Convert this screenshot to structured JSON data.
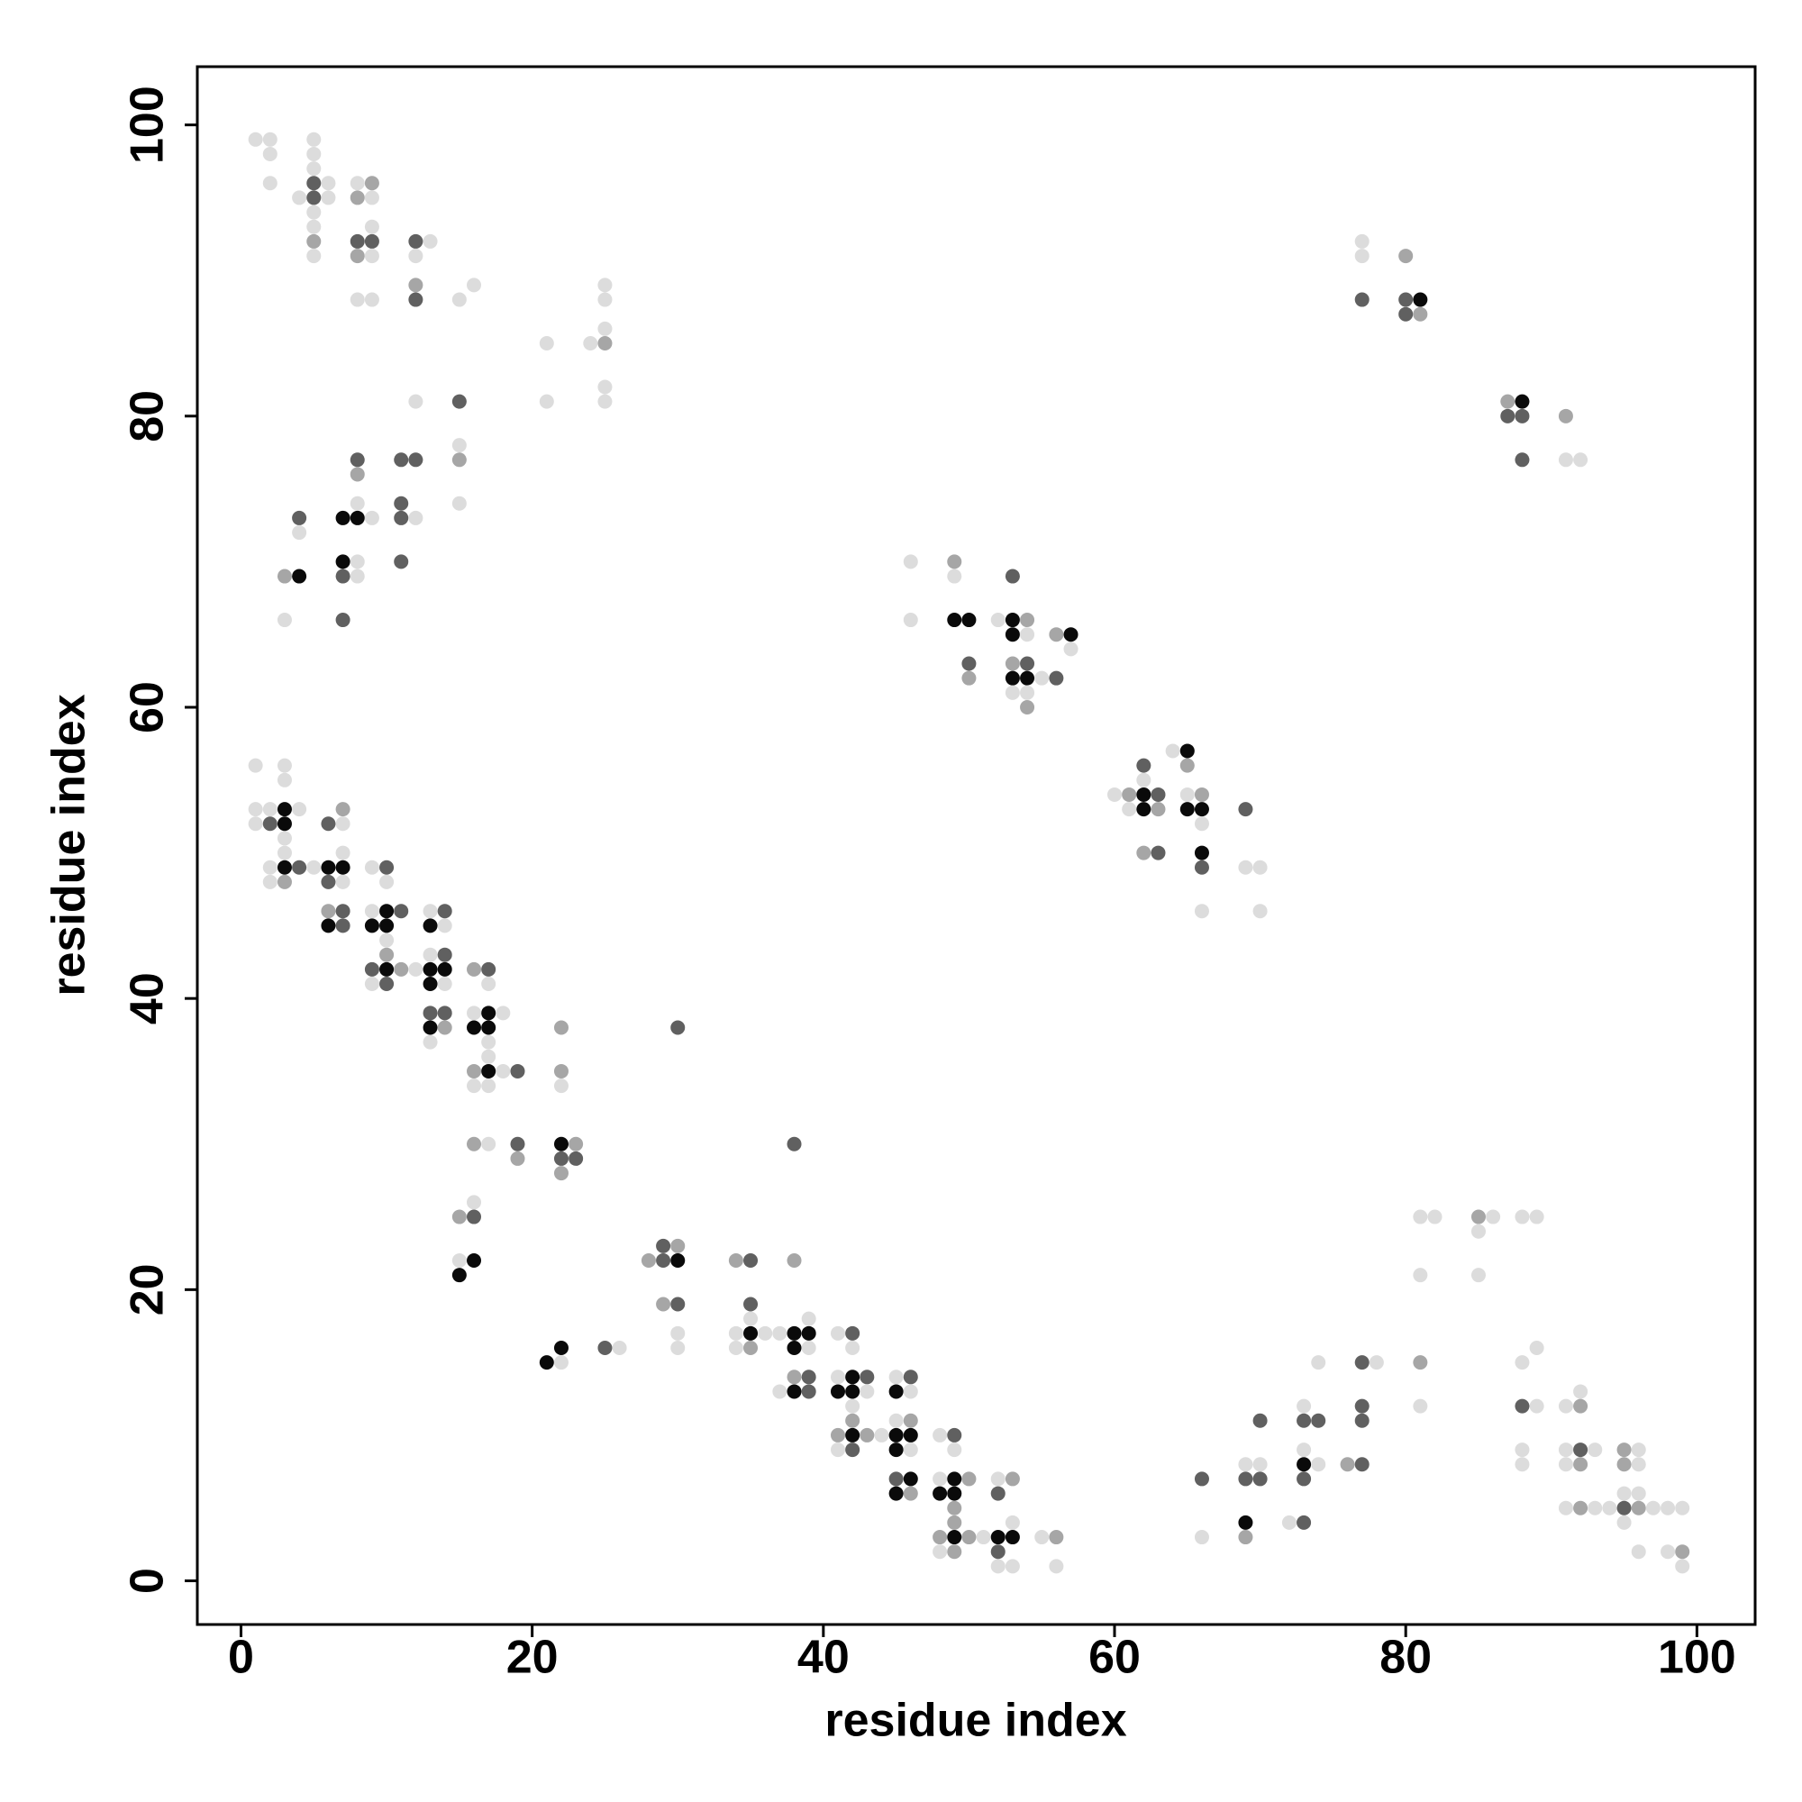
{
  "chart_data": {
    "type": "scatter",
    "xlabel": "residue index",
    "ylabel": "residue index",
    "xlim": [
      -3,
      104
    ],
    "ylim": [
      -3,
      104
    ],
    "xticks": [
      0,
      20,
      40,
      60,
      80,
      100
    ],
    "yticks": [
      0,
      20,
      40,
      60,
      80,
      100
    ],
    "grid": false,
    "series": [
      {
        "color": "#dcdcdc",
        "x": [
          1,
          2,
          2,
          2,
          5,
          5,
          5,
          4,
          6,
          6,
          5,
          5,
          5,
          8,
          9,
          9,
          9,
          8,
          9,
          13,
          12,
          15,
          16,
          21,
          21,
          24,
          25,
          25,
          25,
          25,
          25,
          12,
          15,
          15,
          4,
          3,
          8,
          8,
          8,
          9,
          12,
          1,
          3,
          3,
          1,
          2,
          4,
          1,
          3,
          3,
          2,
          5,
          2,
          7,
          7,
          7,
          9,
          10,
          9,
          10,
          12,
          9,
          13,
          14,
          13,
          14,
          13,
          17,
          16,
          18,
          17,
          17,
          18,
          16,
          17,
          17,
          22,
          16,
          15,
          22,
          26,
          30,
          30,
          35,
          34,
          36,
          37,
          34,
          39,
          39,
          37,
          41,
          42,
          41,
          43,
          42,
          44,
          41,
          45,
          46,
          45,
          46,
          48,
          49,
          48,
          48,
          51,
          52,
          53,
          52,
          53,
          55,
          56,
          46,
          46,
          49,
          52,
          54,
          55,
          53,
          54,
          57,
          60,
          61,
          62,
          64,
          65,
          66,
          66,
          69,
          70,
          70,
          66,
          69,
          70,
          72,
          73,
          73,
          74,
          74,
          78,
          81,
          82,
          81,
          81,
          86,
          85,
          85,
          88,
          89,
          88,
          89,
          89,
          88,
          88,
          91,
          92,
          91,
          93,
          91,
          91,
          93,
          94,
          96,
          96,
          95,
          96,
          97,
          95,
          96,
          98,
          99,
          98,
          99,
          77,
          77,
          91,
          92
        ],
        "values": [
          99,
          99,
          98,
          96,
          99,
          98,
          97,
          95,
          96,
          95,
          94,
          93,
          91,
          96,
          95,
          93,
          91,
          88,
          88,
          92,
          91,
          88,
          89,
          85,
          81,
          85,
          86,
          88,
          89,
          82,
          81,
          81,
          78,
          74,
          72,
          66,
          74,
          70,
          69,
          73,
          73,
          56,
          56,
          55,
          53,
          53,
          53,
          52,
          51,
          50,
          49,
          49,
          48,
          52,
          50,
          48,
          49,
          48,
          46,
          44,
          42,
          41,
          46,
          45,
          43,
          41,
          37,
          41,
          39,
          39,
          37,
          36,
          35,
          34,
          34,
          30,
          34,
          26,
          22,
          15,
          16,
          17,
          16,
          18,
          17,
          17,
          17,
          16,
          18,
          16,
          13,
          17,
          16,
          14,
          13,
          12,
          10,
          9,
          14,
          13,
          11,
          9,
          10,
          9,
          7,
          2,
          3,
          1,
          1,
          7,
          4,
          3,
          1,
          70,
          66,
          69,
          66,
          65,
          62,
          61,
          61,
          64,
          54,
          53,
          55,
          57,
          54,
          52,
          46,
          49,
          49,
          46,
          3,
          8,
          8,
          4,
          12,
          9,
          8,
          15,
          15,
          25,
          25,
          21,
          12,
          25,
          24,
          21,
          25,
          25,
          15,
          16,
          12,
          9,
          8,
          12,
          13,
          9,
          9,
          8,
          5,
          5,
          5,
          9,
          8,
          6,
          6,
          5,
          4,
          2,
          5,
          5,
          2,
          1,
          92,
          91,
          77,
          77
        ]
      },
      {
        "color": "#a6a6a6",
        "x": [
          5,
          9,
          8,
          8,
          12,
          25,
          15,
          3,
          8,
          3,
          7,
          6,
          10,
          11,
          14,
          16,
          16,
          16,
          19,
          22,
          22,
          23,
          22,
          15,
          28,
          30,
          29,
          34,
          35,
          38,
          38,
          42,
          41,
          43,
          46,
          46,
          50,
          49,
          49,
          48,
          50,
          49,
          53,
          56,
          49,
          54,
          50,
          53,
          54,
          56,
          61,
          63,
          62,
          65,
          66,
          69,
          76,
          81,
          85,
          92,
          92,
          92,
          95,
          95,
          96,
          99,
          80,
          81,
          87,
          91
        ],
        "values": [
          92,
          96,
          95,
          91,
          89,
          85,
          77,
          69,
          76,
          48,
          53,
          46,
          43,
          42,
          38,
          42,
          35,
          30,
          29,
          38,
          35,
          30,
          28,
          25,
          22,
          23,
          19,
          22,
          16,
          22,
          14,
          11,
          10,
          10,
          11,
          6,
          7,
          5,
          4,
          3,
          3,
          2,
          7,
          3,
          70,
          66,
          62,
          63,
          60,
          65,
          54,
          53,
          50,
          56,
          54,
          3,
          8,
          15,
          25,
          12,
          8,
          5,
          9,
          8,
          5,
          2,
          91,
          87,
          81,
          80
        ]
      },
      {
        "color": "#606060",
        "x": [
          5,
          5,
          8,
          9,
          12,
          12,
          15,
          4,
          8,
          7,
          7,
          11,
          12,
          11,
          11,
          11,
          2,
          4,
          6,
          6,
          7,
          7,
          10,
          9,
          10,
          11,
          14,
          14,
          13,
          14,
          17,
          19,
          19,
          22,
          23,
          30,
          16,
          25,
          29,
          29,
          30,
          35,
          35,
          38,
          39,
          39,
          42,
          43,
          42,
          46,
          45,
          49,
          52,
          52,
          50,
          53,
          54,
          56,
          62,
          63,
          63,
          66,
          69,
          66,
          69,
          70,
          70,
          73,
          73,
          74,
          73,
          77,
          77,
          77,
          77,
          88,
          92,
          95,
          77,
          80,
          80,
          87,
          88,
          88
        ],
        "values": [
          96,
          95,
          92,
          92,
          92,
          88,
          81,
          73,
          77,
          69,
          66,
          77,
          77,
          74,
          73,
          70,
          52,
          49,
          52,
          48,
          46,
          45,
          49,
          42,
          41,
          46,
          46,
          43,
          39,
          39,
          42,
          35,
          30,
          29,
          29,
          38,
          25,
          16,
          23,
          22,
          19,
          22,
          19,
          30,
          14,
          13,
          17,
          14,
          9,
          14,
          7,
          10,
          6,
          2,
          63,
          69,
          63,
          62,
          56,
          54,
          50,
          49,
          53,
          7,
          7,
          7,
          11,
          4,
          11,
          11,
          7,
          15,
          12,
          11,
          8,
          12,
          9,
          5,
          88,
          88,
          87,
          80,
          80,
          77
        ]
      },
      {
        "color": "#0a0a0a",
        "x": [
          4,
          7,
          8,
          7,
          3,
          3,
          3,
          6,
          7,
          6,
          10,
          9,
          10,
          10,
          13,
          13,
          14,
          13,
          13,
          17,
          16,
          17,
          17,
          22,
          16,
          15,
          21,
          22,
          30,
          35,
          38,
          39,
          38,
          38,
          42,
          41,
          42,
          42,
          45,
          45,
          46,
          45,
          46,
          45,
          49,
          48,
          49,
          49,
          52,
          53,
          49,
          50,
          53,
          53,
          53,
          54,
          57,
          62,
          62,
          65,
          65,
          66,
          66,
          69,
          73,
          81,
          88
        ],
        "values": [
          69,
          73,
          73,
          70,
          53,
          52,
          49,
          49,
          49,
          45,
          46,
          45,
          45,
          42,
          45,
          42,
          42,
          41,
          38,
          39,
          38,
          38,
          35,
          30,
          22,
          21,
          15,
          16,
          22,
          17,
          17,
          17,
          16,
          13,
          14,
          13,
          13,
          10,
          13,
          10,
          10,
          9,
          7,
          6,
          7,
          6,
          6,
          3,
          3,
          3,
          66,
          66,
          66,
          65,
          62,
          62,
          65,
          54,
          53,
          57,
          53,
          53,
          50,
          4,
          8,
          88,
          81
        ]
      }
    ]
  }
}
